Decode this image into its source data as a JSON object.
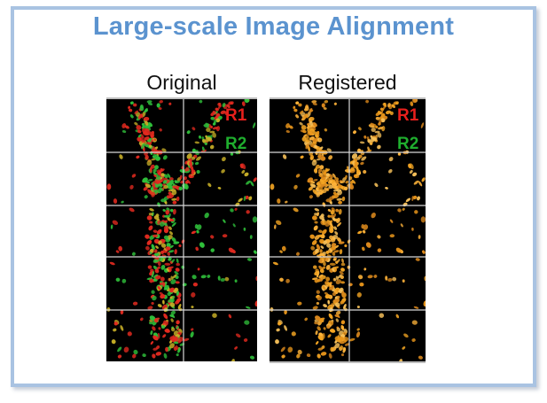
{
  "title": "Large-scale Image Alignment",
  "panels": {
    "original": {
      "caption": "Original"
    },
    "registered": {
      "caption": "Registered"
    }
  },
  "legend": {
    "r1_label": "R1",
    "r2_label": "R2",
    "r1_color": "#e8201c",
    "r2_color": "#1fae2e"
  },
  "colors": {
    "title": "#5b93cf",
    "frame_border": "#a9c3e2",
    "overlay_registered": "#f5a623"
  }
}
